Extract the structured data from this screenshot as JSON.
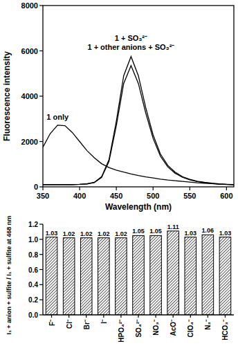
{
  "chart_data": [
    {
      "type": "line",
      "x_label": "Wavelength (nm)",
      "y_label": "Fluorescence intensity",
      "x": [
        350,
        360,
        370,
        380,
        390,
        400,
        410,
        420,
        430,
        440,
        450,
        460,
        470,
        480,
        490,
        500,
        510,
        520,
        530,
        540,
        550,
        560,
        570,
        580,
        590,
        600,
        610
      ],
      "series": [
        {
          "name": "1 only",
          "color": "#000000",
          "values": [
            1750,
            2350,
            2720,
            2700,
            2400,
            2000,
            1600,
            1280,
            1020,
            850,
            740,
            650,
            570,
            500,
            440,
            390,
            340,
            300,
            270,
            240,
            210,
            180,
            160,
            140,
            120,
            110,
            100
          ]
        },
        {
          "name": "1 + SO₃²⁻",
          "color": "#000000",
          "values": [
            100,
            100,
            100,
            100,
            100,
            110,
            130,
            200,
            450,
            1200,
            2900,
            4900,
            5750,
            4900,
            3500,
            2300,
            1450,
            950,
            650,
            450,
            330,
            250,
            200,
            160,
            130,
            110,
            100
          ]
        },
        {
          "name": "1 + other anions + SO₃²⁻",
          "color": "#000000",
          "values": [
            100,
            100,
            100,
            100,
            100,
            110,
            130,
            190,
            420,
            1120,
            2700,
            4560,
            5350,
            4560,
            3260,
            2140,
            1350,
            880,
            600,
            420,
            310,
            230,
            190,
            150,
            120,
            105,
            100
          ]
        }
      ],
      "xlim": [
        350,
        610
      ],
      "xticks": [
        350,
        400,
        450,
        500,
        550,
        600
      ],
      "ylim": [
        0,
        8000
      ],
      "yticks": [
        0,
        2000,
        4000,
        6000,
        8000
      ]
    },
    {
      "type": "bar",
      "y_label": "I₁ + anion + sulfite / I₁ + sulfite at 468 nm",
      "categories": [
        "F⁻",
        "Cl⁻",
        "Br⁻",
        "I⁻",
        "HPO₄²⁻",
        "SO₄²⁻",
        "NO₃⁻",
        "AcO⁻",
        "ClO₄⁻",
        "N₃⁻",
        "HCO₃⁻"
      ],
      "values": [
        1.03,
        1.02,
        1.02,
        1.02,
        1.02,
        1.05,
        1.05,
        1.11,
        1.03,
        1.06,
        1.03
      ],
      "color": "#000000",
      "data_labels": true,
      "ylim": [
        0,
        1.2
      ],
      "yticks": [
        {
          "value": 0,
          "label": "0.0"
        },
        0.2,
        0.4,
        0.6,
        0.8,
        {
          "value": 1,
          "label": "1.0"
        },
        1.2
      ]
    }
  ]
}
